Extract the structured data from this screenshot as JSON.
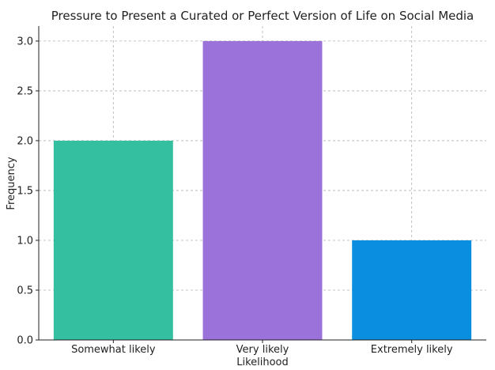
{
  "chart_data": {
    "type": "bar",
    "title": "Pressure to Present a Curated or Perfect Version of Life on Social Media",
    "xlabel": "Likelihood",
    "ylabel": "Frequency",
    "categories": [
      "Somewhat likely",
      "Very likely",
      "Extremely likely"
    ],
    "values": [
      2,
      3,
      1
    ],
    "colors": [
      "#33bfa0",
      "#9b72d9",
      "#0a8fe0"
    ],
    "ylim": [
      0,
      3.15
    ],
    "yticks": [
      0,
      0.5,
      1,
      1.5,
      2,
      2.5,
      3
    ],
    "ytick_labels": [
      "0.0",
      "0.5",
      "1.0",
      "1.5",
      "2.0",
      "2.5",
      "3.0"
    ],
    "grid": true
  }
}
